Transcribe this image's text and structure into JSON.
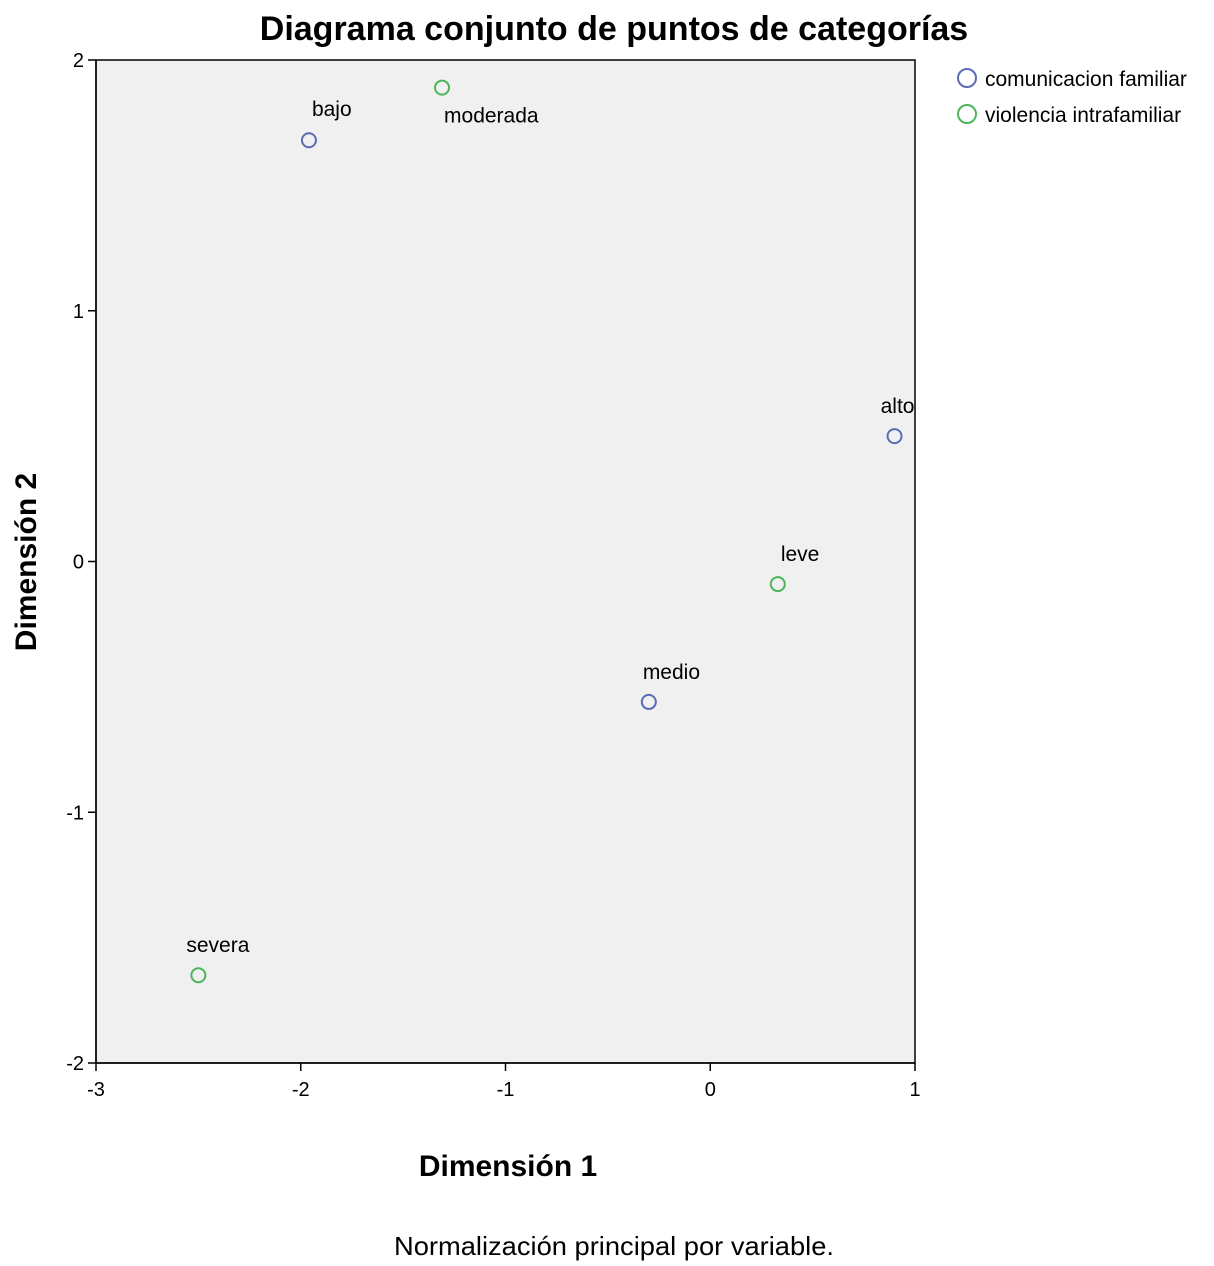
{
  "chart_data": {
    "type": "scatter",
    "title": "Diagrama conjunto de puntos de categorías",
    "xlabel": "Dimensión 1",
    "ylabel": "Dimensión 2",
    "footnote": "Normalización principal por variable.",
    "xlim": [
      -3,
      1
    ],
    "ylim": [
      -2,
      2
    ],
    "xticks": [
      -3,
      -2,
      -1,
      0,
      1
    ],
    "yticks": [
      -2,
      -1,
      0,
      1,
      2
    ],
    "xtick_labels": [
      "-3",
      "-2",
      "-1",
      "0",
      "1"
    ],
    "ytick_labels": [
      "-2",
      "-1",
      "0",
      "1",
      "2"
    ],
    "grid": false,
    "legend_position": "right, outside plot, top",
    "plot_background": "#f0f0f0",
    "series": [
      {
        "name": "comunicacion familiar",
        "color": "#5b6bb5",
        "marker": "open-circle",
        "points": [
          {
            "label": "bajo",
            "x": -1.96,
            "y": 1.68
          },
          {
            "label": "alto",
            "x": 0.9,
            "y": 0.5
          },
          {
            "label": "medio",
            "x": -0.3,
            "y": -0.56
          }
        ]
      },
      {
        "name": "violencia intrafamiliar",
        "color": "#4db55a",
        "marker": "open-circle",
        "points": [
          {
            "label": "moderada",
            "x": -1.31,
            "y": 1.89
          },
          {
            "label": "leve",
            "x": 0.33,
            "y": -0.09
          },
          {
            "label": "severa",
            "x": -2.5,
            "y": -1.65
          }
        ]
      }
    ]
  }
}
